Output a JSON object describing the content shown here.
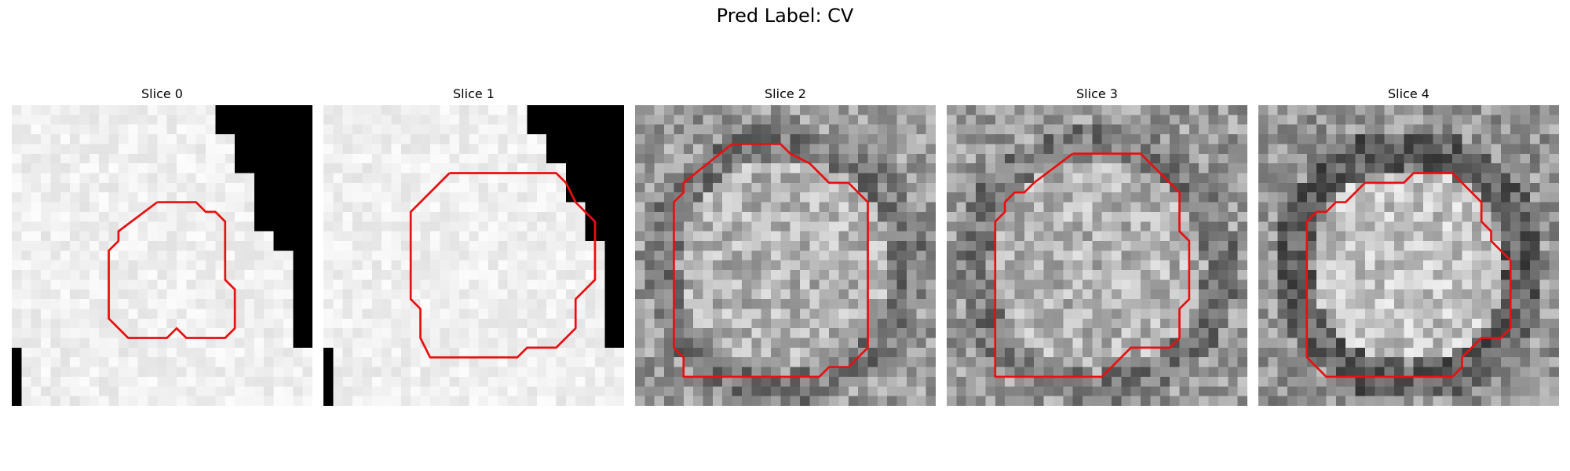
{
  "figure": {
    "title": "Pred Label: CV",
    "contour_color": "#e81010"
  },
  "slices": [
    {
      "title": "Slice 0",
      "style": "bright",
      "contour": [
        [
          15,
          10
        ],
        [
          19,
          10
        ],
        [
          20,
          11
        ],
        [
          21,
          11
        ],
        [
          22,
          12
        ],
        [
          22,
          18
        ],
        [
          23,
          19
        ],
        [
          23,
          23
        ],
        [
          22,
          24
        ],
        [
          18,
          24
        ],
        [
          17,
          23
        ],
        [
          16,
          24
        ],
        [
          12,
          24
        ],
        [
          10,
          22
        ],
        [
          10,
          15
        ],
        [
          11,
          14
        ],
        [
          11,
          13
        ],
        [
          15,
          10
        ]
      ]
    },
    {
      "title": "Slice 1",
      "style": "bright",
      "contour": [
        [
          13,
          7
        ],
        [
          24,
          7
        ],
        [
          25,
          8
        ],
        [
          26,
          10
        ],
        [
          28,
          12
        ],
        [
          28,
          18
        ],
        [
          26,
          20
        ],
        [
          26,
          23
        ],
        [
          24,
          25
        ],
        [
          21,
          25
        ],
        [
          20,
          26
        ],
        [
          11,
          26
        ],
        [
          10,
          24
        ],
        [
          10,
          21
        ],
        [
          9,
          20
        ],
        [
          9,
          11
        ],
        [
          13,
          7
        ]
      ]
    },
    {
      "title": "Slice 2",
      "style": "textured",
      "contour": [
        [
          10,
          4
        ],
        [
          15,
          4
        ],
        [
          16,
          5
        ],
        [
          18,
          6
        ],
        [
          19,
          7
        ],
        [
          20,
          8
        ],
        [
          22,
          8
        ],
        [
          23,
          9
        ],
        [
          24,
          10
        ],
        [
          24,
          25
        ],
        [
          22,
          27
        ],
        [
          20,
          27
        ],
        [
          19,
          28
        ],
        [
          5,
          28
        ],
        [
          5,
          26
        ],
        [
          4,
          25
        ],
        [
          4,
          10
        ],
        [
          5,
          9
        ],
        [
          5,
          8
        ],
        [
          10,
          4
        ]
      ]
    },
    {
      "title": "Slice 3",
      "style": "textured",
      "contour": [
        [
          13,
          5
        ],
        [
          20,
          5
        ],
        [
          21,
          6
        ],
        [
          22,
          7
        ],
        [
          23,
          8
        ],
        [
          24,
          9
        ],
        [
          24,
          13
        ],
        [
          25,
          14
        ],
        [
          25,
          20
        ],
        [
          24,
          21
        ],
        [
          24,
          24
        ],
        [
          23,
          25
        ],
        [
          19,
          25
        ],
        [
          18,
          26
        ],
        [
          17,
          27
        ],
        [
          16,
          28
        ],
        [
          13,
          28
        ],
        [
          5,
          28
        ],
        [
          5,
          12
        ],
        [
          6,
          11
        ],
        [
          6,
          10
        ],
        [
          7,
          9
        ],
        [
          8,
          9
        ],
        [
          9,
          8
        ],
        [
          13,
          5
        ]
      ]
    },
    {
      "title": "Slice 4",
      "style": "ring",
      "contour": [
        [
          11,
          8
        ],
        [
          15,
          8
        ],
        [
          16,
          7
        ],
        [
          20,
          7
        ],
        [
          21,
          8
        ],
        [
          22,
          9
        ],
        [
          23,
          10
        ],
        [
          23,
          12
        ],
        [
          24,
          13
        ],
        [
          24,
          14
        ],
        [
          25,
          15
        ],
        [
          26,
          16
        ],
        [
          26,
          23
        ],
        [
          25,
          24
        ],
        [
          23,
          24
        ],
        [
          22,
          25
        ],
        [
          21,
          26
        ],
        [
          21,
          27
        ],
        [
          20,
          28
        ],
        [
          7,
          28
        ],
        [
          6,
          27
        ],
        [
          5,
          26
        ],
        [
          5,
          12
        ],
        [
          6,
          11
        ],
        [
          7,
          11
        ],
        [
          8,
          10
        ],
        [
          9,
          10
        ],
        [
          10,
          9
        ],
        [
          11,
          8
        ]
      ]
    }
  ]
}
